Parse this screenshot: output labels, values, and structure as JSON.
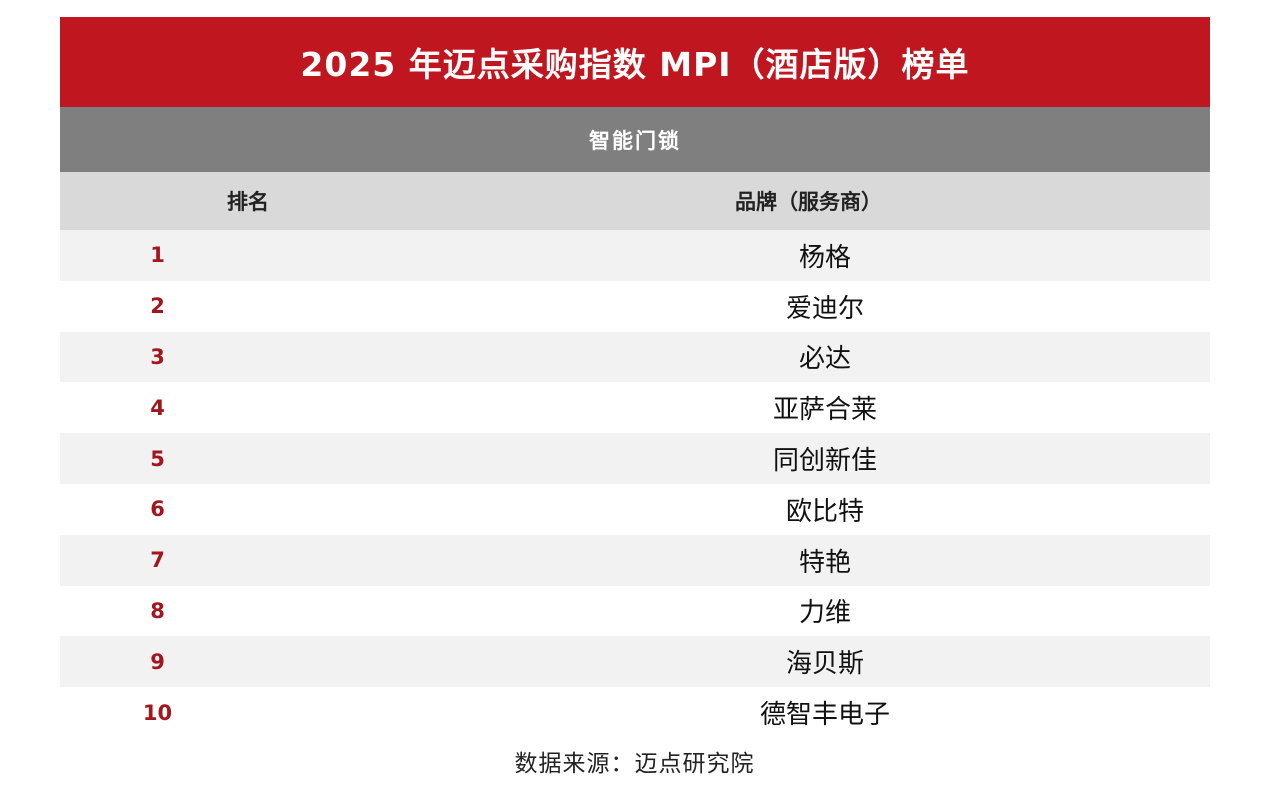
{
  "title": "2025 年迈点采购指数 MPI（酒店版）榜单",
  "category": "智能门锁",
  "table": {
    "headers": {
      "rank": "排名",
      "brand": "品牌（服务商）"
    },
    "rows": [
      {
        "rank": "1",
        "brand": "杨格"
      },
      {
        "rank": "2",
        "brand": "爱迪尔"
      },
      {
        "rank": "3",
        "brand": "必达"
      },
      {
        "rank": "4",
        "brand": "亚萨合莱"
      },
      {
        "rank": "5",
        "brand": "同创新佳"
      },
      {
        "rank": "6",
        "brand": "欧比特"
      },
      {
        "rank": "7",
        "brand": "特艳"
      },
      {
        "rank": "8",
        "brand": "力维"
      },
      {
        "rank": "9",
        "brand": "海贝斯"
      },
      {
        "rank": "10",
        "brand": "德智丰电子"
      }
    ]
  },
  "source": "数据来源：迈点研究院",
  "colors": {
    "title_bg": "#c0161f",
    "category_bg": "#7f7f7f",
    "header_bg": "#d9d9d9",
    "rank_text": "#a4161d",
    "stripe": "#f2f2f2"
  }
}
